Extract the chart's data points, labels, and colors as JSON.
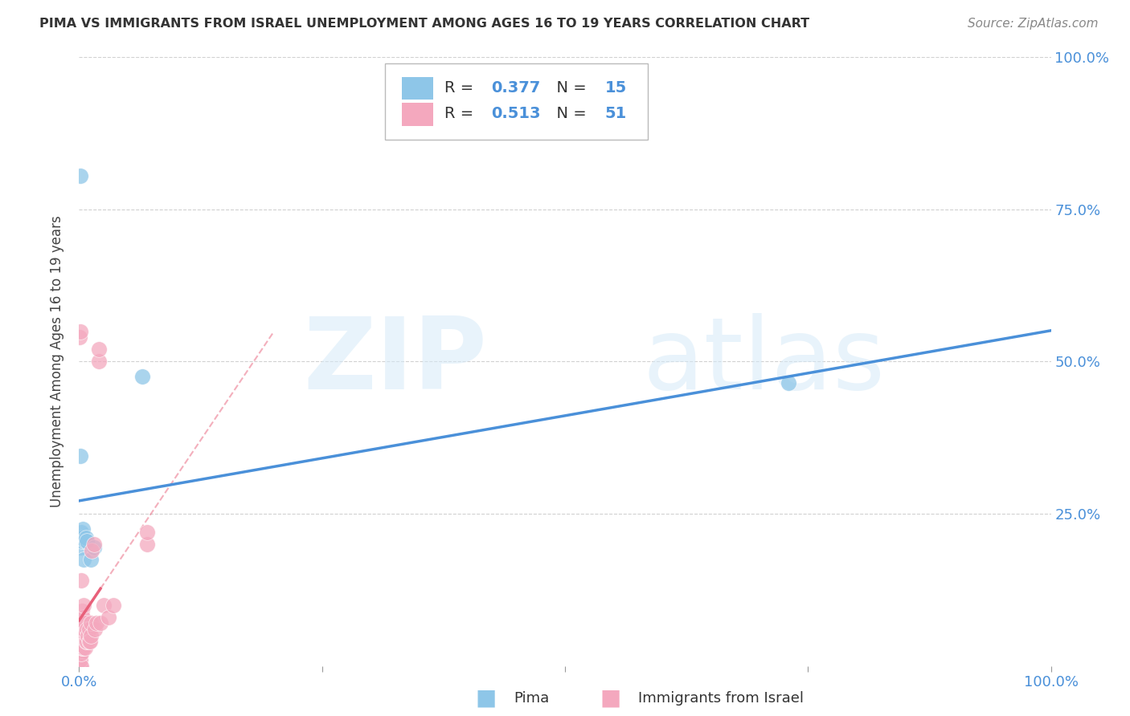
{
  "title": "PIMA VS IMMIGRANTS FROM ISRAEL UNEMPLOYMENT AMONG AGES 16 TO 19 YEARS CORRELATION CHART",
  "source": "Source: ZipAtlas.com",
  "ylabel": "Unemployment Among Ages 16 to 19 years",
  "xlim": [
    0,
    1.0
  ],
  "ylim": [
    0,
    1.0
  ],
  "legend_label1": "Pima",
  "legend_label2": "Immigrants from Israel",
  "blue_color": "#8ec6e8",
  "pink_color": "#f4a8be",
  "blue_line_color": "#4a90d9",
  "pink_line_color": "#e8607a",
  "watermark_zip": "ZIP",
  "watermark_atlas": "atlas",
  "background_color": "#ffffff",
  "grid_color": "#cccccc",
  "pima_x": [
    0.001,
    0.001,
    0.002,
    0.003,
    0.003,
    0.004,
    0.005,
    0.006,
    0.007,
    0.008,
    0.012,
    0.015,
    0.065,
    0.73,
    0.001
  ],
  "pima_y": [
    0.195,
    0.345,
    0.22,
    0.205,
    0.21,
    0.225,
    0.175,
    0.205,
    0.21,
    0.205,
    0.175,
    0.195,
    0.475,
    0.465,
    0.805
  ],
  "israel_x": [
    0.0005,
    0.0005,
    0.0005,
    0.0005,
    0.001,
    0.001,
    0.001,
    0.001,
    0.001,
    0.001,
    0.001,
    0.002,
    0.002,
    0.002,
    0.002,
    0.003,
    0.003,
    0.003,
    0.004,
    0.004,
    0.004,
    0.004,
    0.005,
    0.005,
    0.005,
    0.005,
    0.006,
    0.006,
    0.007,
    0.008,
    0.008,
    0.009,
    0.01,
    0.01,
    0.011,
    0.012,
    0.012,
    0.013,
    0.015,
    0.016,
    0.018,
    0.02,
    0.02,
    0.022,
    0.025,
    0.03,
    0.035,
    0.07,
    0.07,
    0.0005,
    0.001
  ],
  "israel_y": [
    0.0,
    0.01,
    0.02,
    0.03,
    0.0,
    0.01,
    0.02,
    0.03,
    0.04,
    0.05,
    0.06,
    0.0,
    0.02,
    0.04,
    0.14,
    0.03,
    0.05,
    0.09,
    0.03,
    0.04,
    0.06,
    0.08,
    0.03,
    0.05,
    0.06,
    0.1,
    0.03,
    0.07,
    0.04,
    0.04,
    0.06,
    0.05,
    0.04,
    0.06,
    0.04,
    0.05,
    0.07,
    0.19,
    0.2,
    0.06,
    0.07,
    0.5,
    0.52,
    0.07,
    0.1,
    0.08,
    0.1,
    0.2,
    0.22,
    0.54,
    0.55
  ]
}
